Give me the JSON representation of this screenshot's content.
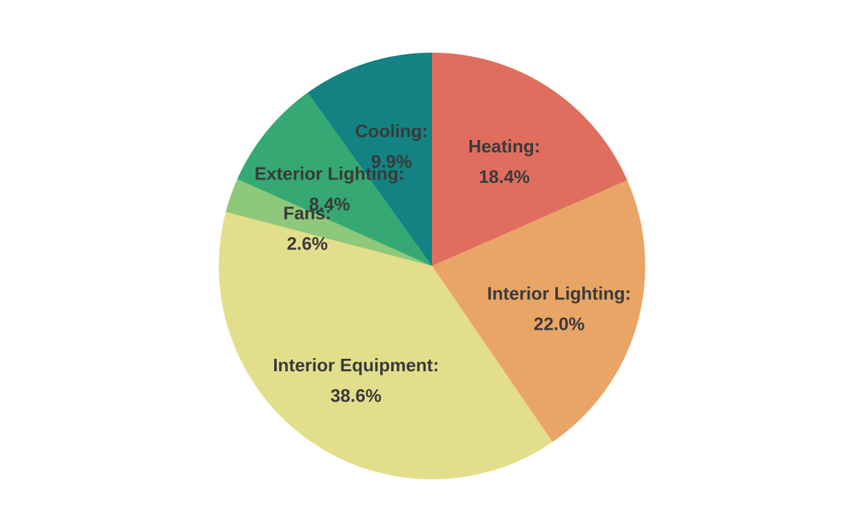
{
  "chart_data": {
    "type": "pie",
    "title": "",
    "start": "top",
    "direction": "clockwise",
    "slices": [
      {
        "label": "Heating",
        "value": 18.4,
        "display": "18.4%",
        "color": "#e06e5f"
      },
      {
        "label": "Interior Lighting",
        "value": 22.0,
        "display": "22.0%",
        "color": "#e9a566"
      },
      {
        "label": "Interior Equipment",
        "value": 38.6,
        "display": "38.6%",
        "color": "#e3de8c"
      },
      {
        "label": "Fans",
        "value": 2.6,
        "display": "2.6%",
        "color": "#8ec87a"
      },
      {
        "label": "Exterior Lighting",
        "value": 8.4,
        "display": "8.4%",
        "color": "#35a874"
      },
      {
        "label": "Cooling",
        "value": 9.9,
        "display": "9.9%",
        "color": "#128382"
      }
    ]
  }
}
